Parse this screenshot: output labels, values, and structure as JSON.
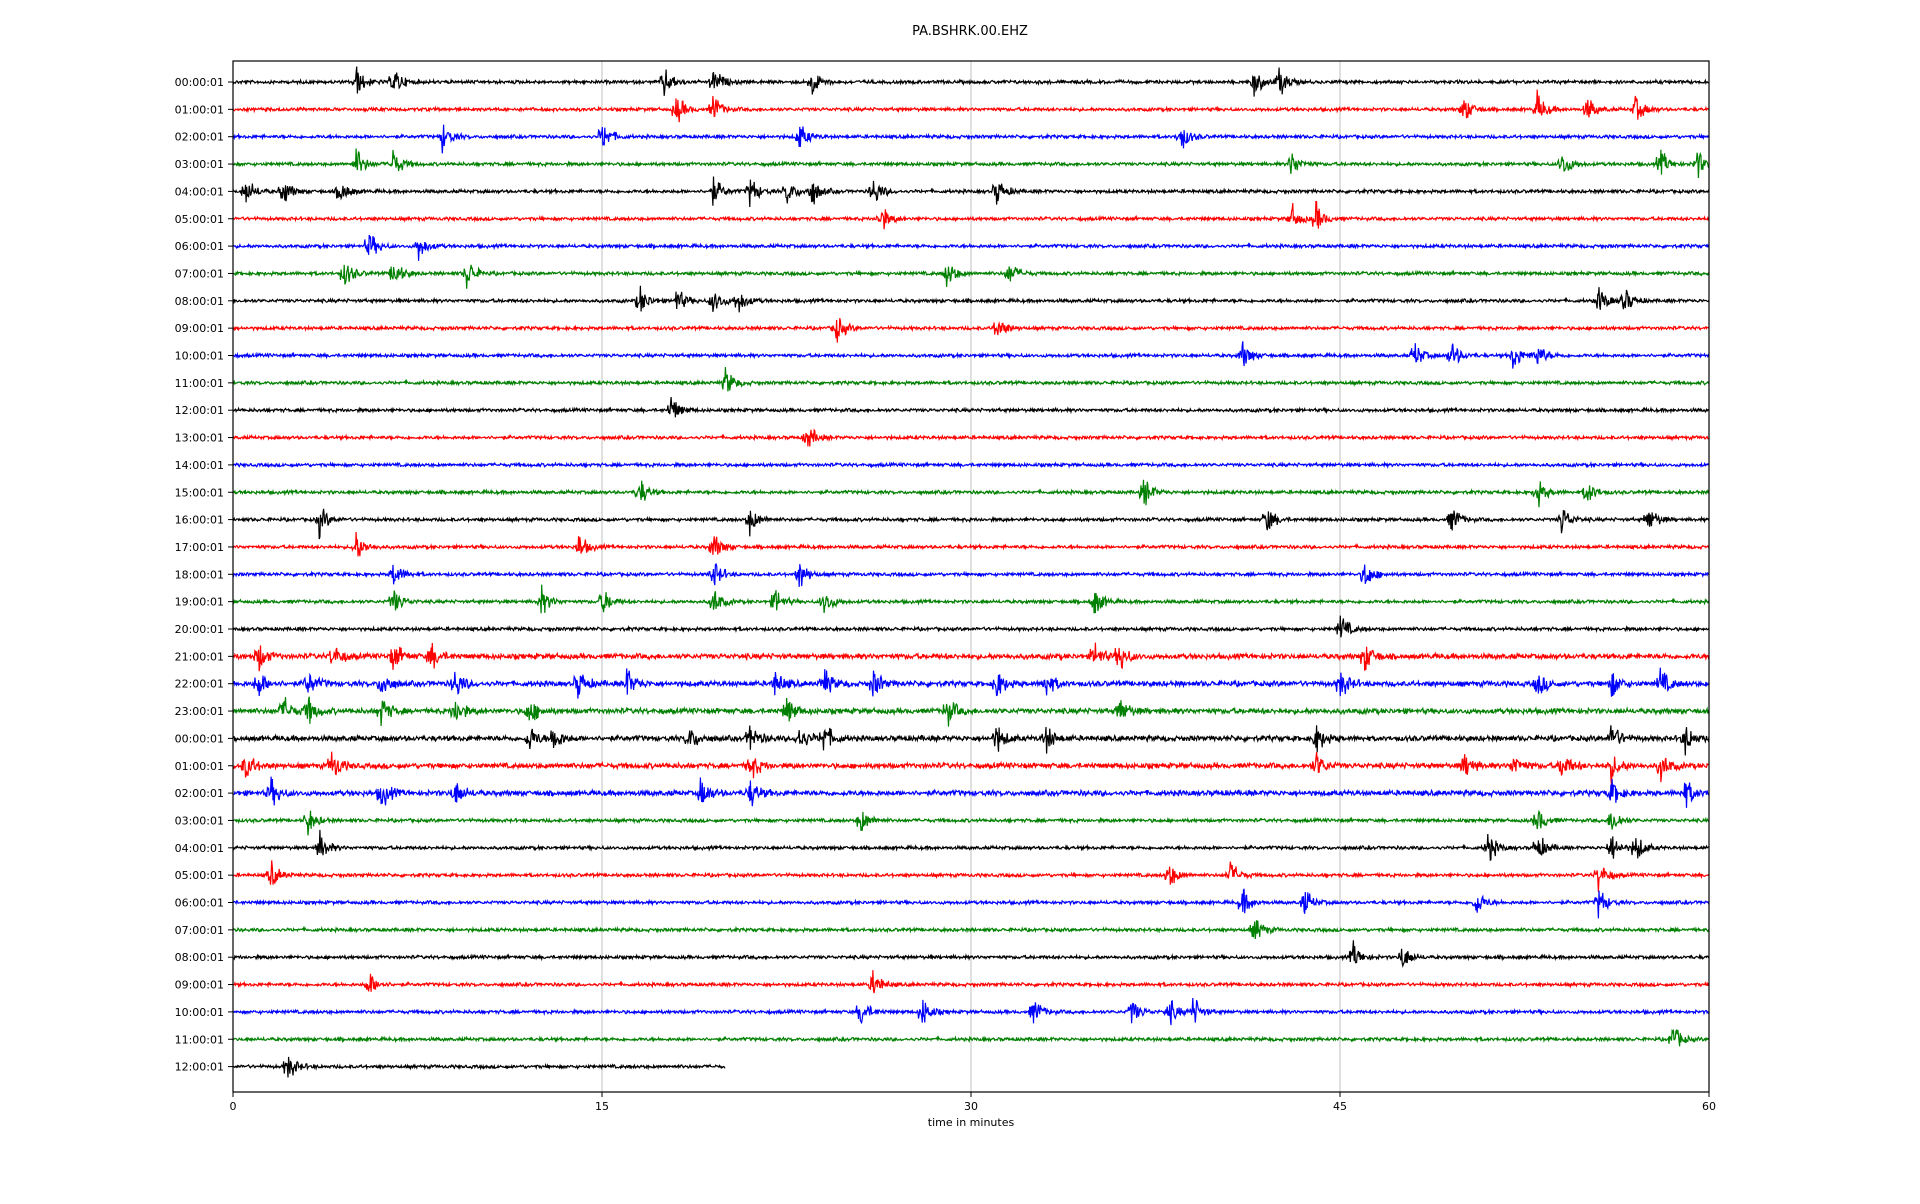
{
  "chart_data": {
    "type": "line",
    "title": "PA.BSHRK.00.EHZ",
    "xlabel": "time in minutes",
    "ylabel": "",
    "xlim": [
      0,
      60
    ],
    "xticks": [
      0,
      15,
      30,
      45,
      60
    ],
    "grid": "vertical lines at x ticks",
    "colors": [
      "#000000",
      "#ff0000",
      "#0000ff",
      "#008000"
    ],
    "rows": [
      "00:00:01",
      "01:00:01",
      "02:00:01",
      "03:00:01",
      "04:00:01",
      "05:00:01",
      "06:00:01",
      "07:00:01",
      "08:00:01",
      "09:00:01",
      "10:00:01",
      "11:00:01",
      "12:00:01",
      "13:00:01",
      "14:00:01",
      "15:00:01",
      "16:00:01",
      "17:00:01",
      "18:00:01",
      "19:00:01",
      "20:00:01",
      "21:00:01",
      "22:00:01",
      "23:00:01",
      "00:00:01",
      "01:00:01",
      "02:00:01",
      "03:00:01",
      "04:00:01",
      "05:00:01",
      "06:00:01",
      "07:00:01",
      "08:00:01",
      "09:00:01",
      "10:00:01",
      "11:00:01",
      "12:00:01"
    ],
    "last_row_end_minute": 20,
    "events_minutes_approx": [
      [
        5,
        6.5,
        17.5,
        19.5,
        23.5,
        41.5,
        42.5
      ],
      [
        18,
        19.5,
        50,
        53,
        55,
        57
      ],
      [
        8.5,
        15,
        23,
        38.5
      ],
      [
        5,
        6.5,
        43,
        54,
        58,
        59.5
      ],
      [
        0.5,
        2,
        4.3,
        19.5,
        21,
        22.5,
        23.5,
        26,
        31
      ],
      [
        26.3,
        43,
        44
      ],
      [
        5.5,
        7.5
      ],
      [
        4.5,
        6.5,
        9.5,
        29,
        31.5
      ],
      [
        16.5,
        18,
        19.5,
        20.5,
        55.5,
        56.5
      ],
      [
        24.5,
        31
      ],
      [
        41,
        48,
        49.5,
        52,
        53
      ],
      [
        20
      ],
      [
        17.8
      ],
      [
        23.3
      ],
      [],
      [
        16.5,
        37,
        53,
        55
      ],
      [
        3.5,
        21,
        42,
        49.5,
        54,
        57.5
      ],
      [
        5,
        14,
        19.5
      ],
      [
        6.5,
        19.5,
        23,
        46
      ],
      [
        6.5,
        12.5,
        15,
        19.5,
        22,
        24,
        35
      ],
      [
        45
      ],
      [
        1,
        4,
        6.5,
        8,
        35,
        36,
        46
      ],
      [
        1,
        3,
        6,
        9,
        14,
        16,
        22,
        24,
        26,
        31,
        33,
        45,
        53,
        56,
        58
      ],
      [
        2,
        3,
        6,
        9,
        12,
        22.5,
        29,
        36
      ],
      [
        12,
        13,
        18.5,
        21,
        23,
        24,
        31,
        33,
        44,
        56,
        59
      ],
      [
        0.5,
        4,
        21,
        44,
        50,
        52,
        54,
        56,
        58
      ],
      [
        1.5,
        6,
        9,
        19,
        21,
        56,
        59
      ],
      [
        3,
        25.5,
        53,
        56
      ],
      [
        3.5,
        51,
        53,
        56,
        57
      ],
      [
        1.5,
        38,
        40.5,
        55.5
      ],
      [
        41,
        43.5,
        50.5,
        55.5
      ],
      [
        41.5
      ],
      [
        45.5,
        47.5
      ],
      [
        5.5,
        26
      ],
      [
        25.5,
        28,
        32.5,
        36.5,
        38,
        39
      ],
      [
        58.5
      ],
      [
        2.2
      ]
    ]
  }
}
